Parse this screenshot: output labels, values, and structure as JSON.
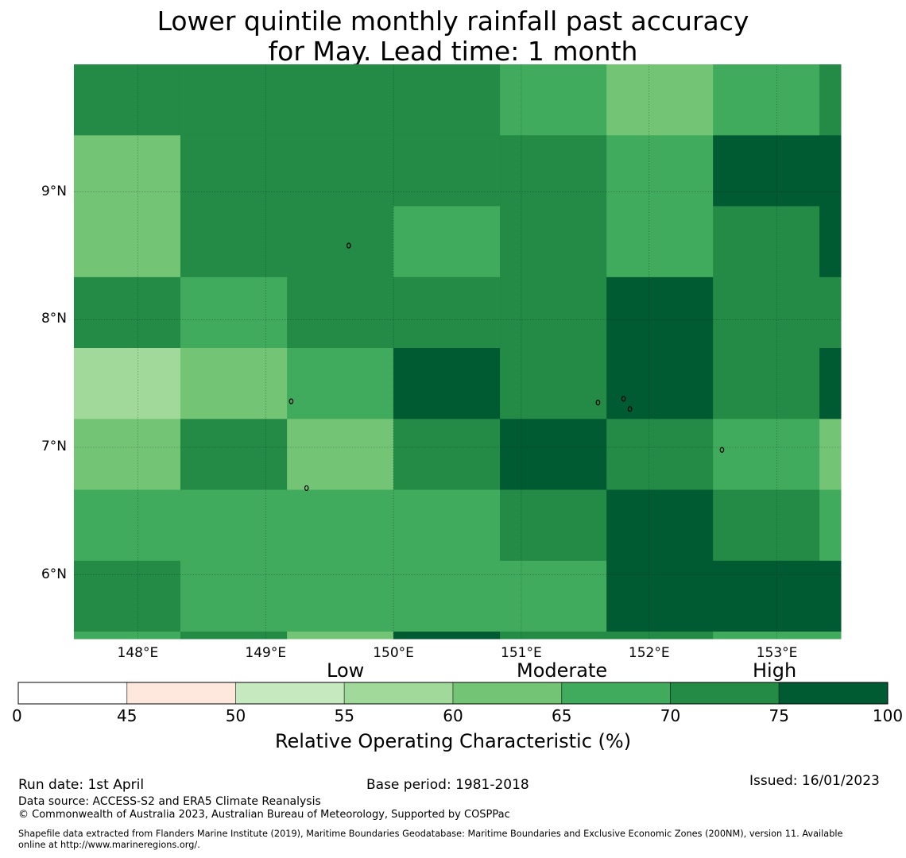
{
  "title_line1": "Lower quintile monthly rainfall past accuracy",
  "title_line2": "for May. Lead time: 1 month",
  "map": {
    "lon_range": [
      147.5,
      153.5
    ],
    "lat_range": [
      5.5,
      10.0
    ],
    "grid_lines": true,
    "x_ticks": [
      {
        "value": 148,
        "label": "148°E"
      },
      {
        "value": 149,
        "label": "149°E"
      },
      {
        "value": 150,
        "label": "150°E"
      },
      {
        "value": 151,
        "label": "151°E"
      },
      {
        "value": 152,
        "label": "152°E"
      },
      {
        "value": 153,
        "label": "153°E"
      }
    ],
    "y_ticks": [
      {
        "value": 9,
        "label": "9°N"
      },
      {
        "value": 8,
        "label": "8°N"
      },
      {
        "value": 7,
        "label": "7°N"
      },
      {
        "value": 6,
        "label": "6°N"
      }
    ],
    "col_edges_lon": [
      147.5,
      148.333,
      149.167,
      150.0,
      150.833,
      151.667,
      152.5,
      153.333,
      153.5
    ],
    "row_edges_lat": [
      10.0,
      9.444,
      8.889,
      8.333,
      7.778,
      7.222,
      6.667,
      6.111,
      5.556,
      5.5
    ],
    "cell_classes": [
      [
        70,
        70,
        70,
        70,
        65,
        60,
        65,
        70
      ],
      [
        60,
        70,
        70,
        70,
        70,
        65,
        75,
        75
      ],
      [
        60,
        70,
        70,
        65,
        70,
        65,
        70,
        75
      ],
      [
        70,
        65,
        70,
        70,
        70,
        75,
        70,
        70
      ],
      [
        55,
        60,
        65,
        75,
        70,
        75,
        70,
        75
      ],
      [
        60,
        70,
        60,
        70,
        75,
        70,
        65,
        60
      ],
      [
        65,
        65,
        65,
        65,
        70,
        75,
        70,
        65
      ],
      [
        70,
        65,
        65,
        65,
        65,
        75,
        75,
        75
      ],
      [
        65,
        70,
        60,
        75,
        70,
        70,
        65,
        65
      ]
    ],
    "islands": [
      {
        "lon": 149.65,
        "lat": 8.58
      },
      {
        "lon": 149.2,
        "lat": 7.36
      },
      {
        "lon": 149.32,
        "lat": 6.68
      },
      {
        "lon": 151.6,
        "lat": 7.35
      },
      {
        "lon": 151.8,
        "lat": 7.38
      },
      {
        "lon": 151.85,
        "lat": 7.3
      },
      {
        "lon": 152.57,
        "lat": 6.98
      }
    ]
  },
  "colorbar": {
    "bounds": [
      0,
      45,
      50,
      55,
      60,
      65,
      70,
      75,
      100
    ],
    "tick_labels": [
      "0",
      "45",
      "50",
      "55",
      "60",
      "65",
      "70",
      "75",
      "100"
    ],
    "colors": [
      "#ffffff",
      "#fee8de",
      "#c7e9c0",
      "#a1d99b",
      "#74c476",
      "#41ab5d",
      "#238b45",
      "#005a32"
    ],
    "categories": [
      "Low",
      "Moderate",
      "High"
    ],
    "title": "Relative Operating Characteristic (%)"
  },
  "footer": {
    "run_date": "Run date: 1st April",
    "base_period": "Base period: 1981-2018",
    "issued": "Issued: 16/01/2023",
    "data_source": "Data source: ACCESS-S2 and ERA5 Climate Reanalysis",
    "copyright": "© Commonwealth of Australia 2023, Australian Bureau of Meteorology, Supported by COSPPac",
    "shapefile_line1": "Shapefile data extracted from Flanders Marine Institute (2019), Maritime Boundaries Geodatabase: Maritime Boundaries and Exclusive Economic Zones (200NM), version 11. Available",
    "shapefile_line2": "online at http://www.marineregions.org/."
  }
}
